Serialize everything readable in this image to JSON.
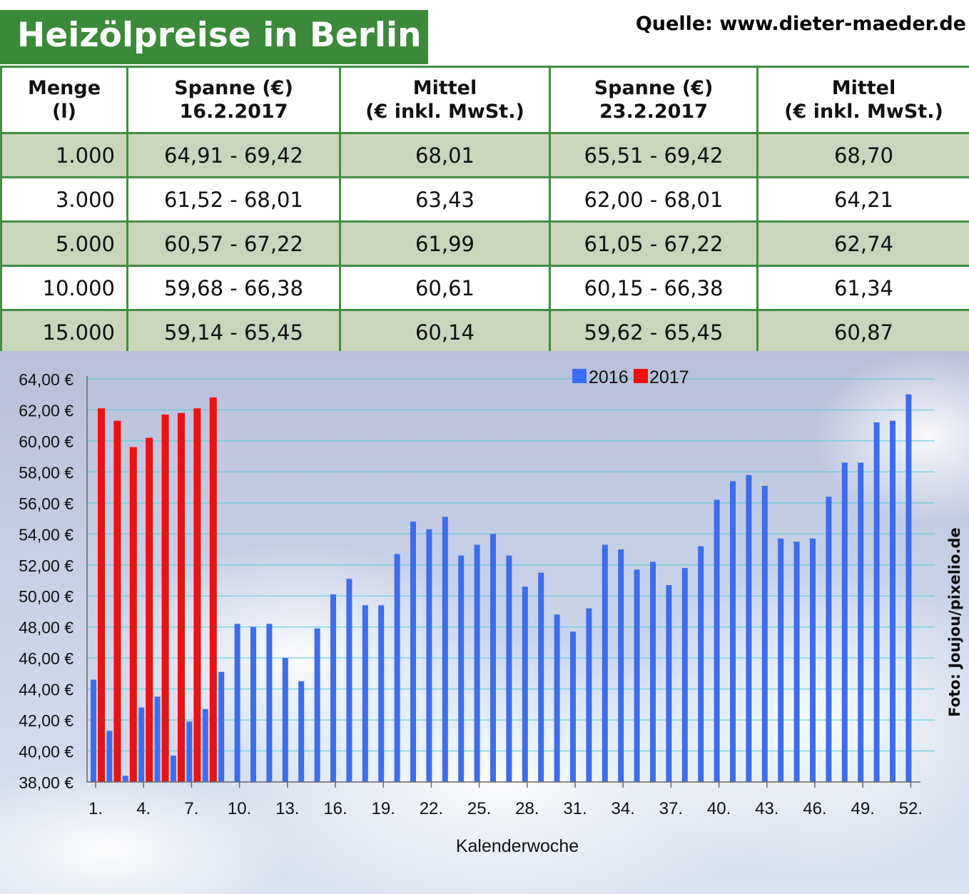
{
  "header": {
    "title": "Heizölpreise in Berlin",
    "source": "Quelle: www.dieter-maeder.de"
  },
  "table": {
    "headers": [
      [
        "Menge",
        "(l)"
      ],
      [
        "Spanne (€)",
        "16.2.2017"
      ],
      [
        "Mittel",
        "(€ inkl. MwSt.)"
      ],
      [
        "Spanne (€)",
        "23.2.2017"
      ],
      [
        "Mittel",
        "(€ inkl. MwSt.)"
      ]
    ],
    "rows": [
      [
        "1.000",
        "64,91 - 69,42",
        "68,01",
        "65,51 - 69,42",
        "68,70"
      ],
      [
        "3.000",
        "61,52 - 68,01",
        "63,43",
        "62,00 - 68,01",
        "64,21"
      ],
      [
        "5.000",
        "60,57 - 67,22",
        "61,99",
        "61,05 - 67,22",
        "62,74"
      ],
      [
        "10.000",
        "59,68 - 66,38",
        "60,61",
        "60,15 - 66,38",
        "61,34"
      ],
      [
        "15.000",
        "59,14 - 65,45",
        "60,14",
        "59,62 - 65,45",
        "60,87"
      ]
    ]
  },
  "colors": {
    "title_bg": "#3a8a3a",
    "table_border": "#3f8f3f",
    "row_shade": "#c8d6bc",
    "series_2016": "#3c6cf0",
    "series_2017": "#ee1111"
  },
  "chart_data": {
    "type": "bar",
    "xlabel": "Kalenderwoche",
    "ylabel": "",
    "ylim": [
      38,
      64
    ],
    "y_ticks": [
      "38,00 €",
      "40,00 €",
      "42,00 €",
      "44,00 €",
      "46,00 €",
      "48,00 €",
      "50,00 €",
      "52,00 €",
      "54,00 €",
      "56,00 €",
      "58,00 €",
      "60,00 €",
      "62,00 €",
      "64,00 €"
    ],
    "x_ticks": [
      "1.",
      "4.",
      "7.",
      "10.",
      "13.",
      "16.",
      "19.",
      "22.",
      "25.",
      "28.",
      "31.",
      "34.",
      "37.",
      "40.",
      "43.",
      "46.",
      "49.",
      "52."
    ],
    "x_tick_weeks": [
      1,
      4,
      7,
      10,
      13,
      16,
      19,
      22,
      25,
      28,
      31,
      34,
      37,
      40,
      43,
      46,
      49,
      52
    ],
    "grid": true,
    "legend_position": "top",
    "series": [
      {
        "name": "2016",
        "weeks": [
          1,
          2,
          3,
          4,
          5,
          6,
          7,
          8,
          9,
          10,
          11,
          12,
          13,
          14,
          15,
          16,
          17,
          18,
          19,
          20,
          21,
          22,
          23,
          24,
          25,
          26,
          27,
          28,
          29,
          30,
          31,
          32,
          33,
          34,
          35,
          36,
          37,
          38,
          39,
          40,
          41,
          42,
          43,
          44,
          45,
          46,
          47,
          48,
          49,
          50,
          51,
          52
        ],
        "values": [
          44.6,
          41.3,
          38.4,
          42.8,
          43.5,
          39.7,
          41.9,
          42.7,
          45.1,
          48.2,
          48.0,
          48.2,
          46.0,
          44.5,
          47.9,
          50.1,
          51.1,
          49.4,
          49.4,
          52.7,
          54.8,
          54.3,
          55.1,
          52.6,
          53.3,
          54.0,
          52.6,
          50.6,
          51.5,
          48.8,
          47.7,
          49.2,
          53.3,
          53.0,
          51.7,
          52.2,
          50.7,
          51.8,
          53.2,
          56.2,
          57.4,
          57.8,
          57.1,
          53.7,
          53.5,
          53.7,
          56.4,
          58.6,
          58.6,
          61.2,
          61.3,
          63.0
        ]
      },
      {
        "name": "2017",
        "weeks": [
          1,
          2,
          3,
          4,
          5,
          6,
          7,
          8
        ],
        "values": [
          62.1,
          61.3,
          59.6,
          60.2,
          61.7,
          61.8,
          62.1,
          62.8
        ]
      }
    ]
  },
  "photo_credit": "Foto: Joujou/pixelio.de"
}
